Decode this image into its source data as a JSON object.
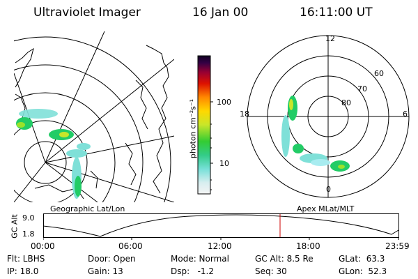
{
  "header": {
    "title": "Ultraviolet Imager",
    "date": "16 Jan 00",
    "time": "16:11:00 UT"
  },
  "geo_panel": {
    "label": "Geographic Lat/Lon"
  },
  "polar_panel": {
    "label": "Apex MLat/MLT",
    "mlt_labels": [
      "12",
      "18",
      "6",
      "0"
    ],
    "lat_labels": [
      "60",
      "70",
      "80"
    ]
  },
  "colorbar": {
    "unit_label": "photon cm⁻²s⁻¹",
    "ticks": [
      "100",
      "10"
    ]
  },
  "altitude_plot": {
    "ylabel": "GC Alt",
    "y_ticks": [
      "9.0",
      "1.8"
    ],
    "time_ticks": [
      "00:00",
      "06:00",
      "12:00",
      "18:00",
      "23:59"
    ],
    "marker_color": "#cc0000"
  },
  "status": {
    "filter": "Flt: LBHS",
    "ip": "IP: 18.0",
    "door": "Door: Open",
    "gain": "Gain: 13",
    "mode": "Mode: Normal",
    "dsp": "Dsp:   -1.2",
    "gc_alt": "GC Alt: 8.5 Re",
    "seq": "Seq: 30",
    "glat": "GLat:  63.3",
    "glon": "GLon:  52.3"
  }
}
